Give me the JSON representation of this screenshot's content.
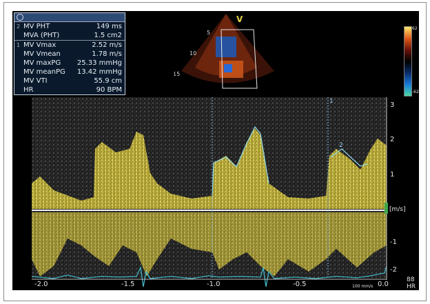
{
  "measurements": {
    "header_icon": "circle-icon",
    "rows": [
      {
        "index": "2",
        "label": "MV PHT",
        "value": "149 ms"
      },
      {
        "index": "",
        "label": "MVA (PHT)",
        "value": "1.5 cm2"
      },
      {
        "index": "1",
        "label": "MV Vmax",
        "value": "2.52 m/s"
      },
      {
        "index": "",
        "label": "MV Vmean",
        "value": "1.78 m/s"
      },
      {
        "index": "",
        "label": "MV maxPG",
        "value": "25.33 mmHg"
      },
      {
        "index": "",
        "label": "MV meanPG",
        "value": "13.42 mmHg"
      },
      {
        "index": "",
        "label": "MV VTI",
        "value": "55.9 cm"
      },
      {
        "index": "",
        "label": "HR",
        "value": "90 BPM"
      }
    ]
  },
  "echo_image": {
    "marker": "V",
    "depth_labels": [
      "5",
      "10",
      "15"
    ]
  },
  "color_bar": {
    "top": "62",
    "bottom": "-62"
  },
  "velocity_axis": {
    "ticks": [
      "3",
      "2",
      "1",
      "1",
      "-1",
      "-2"
    ],
    "unit": "[m/s]"
  },
  "time_axis": {
    "ticks": [
      "-2.0",
      "-1.5",
      "-1.0",
      "-0.5",
      "0.0"
    ],
    "speed": "100 mm/s"
  },
  "hr_readout": {
    "value": "88",
    "label": "HR"
  },
  "trace_markers": [
    "1",
    "2"
  ],
  "colors": {
    "doppler": "#d8c84a",
    "trace": "#8fd8e8",
    "ecg": "#3fb6c6",
    "background": "#000000"
  }
}
